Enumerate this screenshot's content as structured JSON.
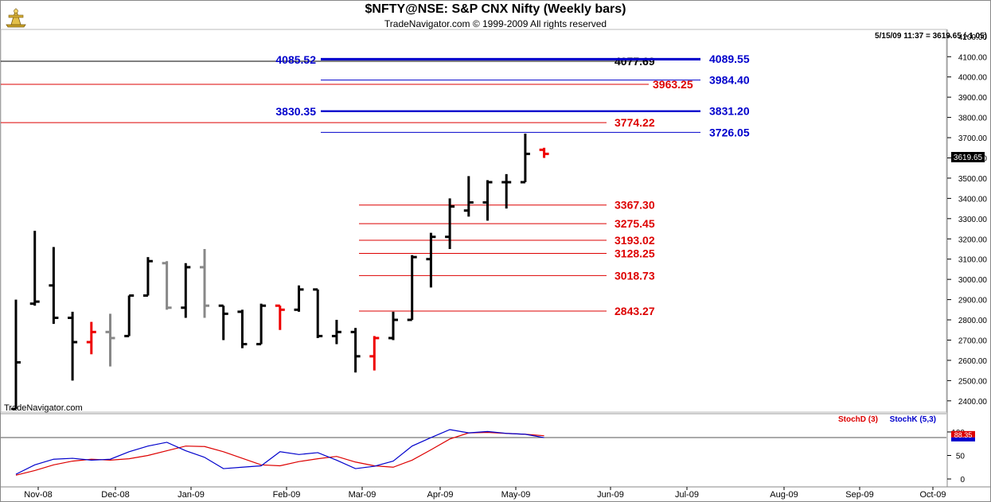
{
  "header": {
    "title": "$NFTY@NSE:  S&P CNX Nifty  (Weekly bars)",
    "subtitle": "TradeNavigator.com © 1999-2009 All rights reserved",
    "quote": "5/15/09 11:37 = 3619.65 (-1.05)",
    "last_price_tag": "3619.65",
    "watermark": "TradeNavigator.com"
  },
  "chart_data": [
    {
      "type": "bar",
      "subtype": "ohlc",
      "title": "$NFTY@NSE:  S&P CNX Nifty  (Weekly bars)",
      "ylim": [
        2360,
        4215
      ],
      "y_ticks": [
        2400,
        2500,
        2600,
        2700,
        2800,
        2900,
        3000,
        3100,
        3200,
        3300,
        3400,
        3500,
        3600,
        3700,
        3800,
        3900,
        4000,
        4100,
        4200
      ],
      "y_tick_labels": [
        "2400.00",
        "2500.00",
        "2600.00",
        "2700.00",
        "2800.00",
        "2900.00",
        "3000.00",
        "3100.00",
        "3200.00",
        "3300.00",
        "3400.00",
        "3500.00",
        "3600.00",
        "3700.00",
        "3800.00",
        "3900.00",
        "4000.00",
        "4100.00",
        "4200.00"
      ],
      "x_tick_labels": [
        "Nov-08",
        "Dec-08",
        "Jan-09",
        "Feb-09",
        "Mar-09",
        "Apr-09",
        "May-09",
        "Jun-09",
        "Jul-09",
        "Aug-09",
        "Sep-09",
        "Oct-09"
      ],
      "bar_colors": {
        "black": "#000000",
        "red": "#ee0000",
        "gray": "#888888"
      },
      "bars": [
        {
          "o": 2360,
          "h": 2900,
          "l": 2360,
          "c": 2590,
          "color": "black"
        },
        {
          "o": 2880,
          "h": 3240,
          "l": 2870,
          "c": 2890,
          "color": "black"
        },
        {
          "o": 2970,
          "h": 3160,
          "l": 2780,
          "c": 2810,
          "color": "black"
        },
        {
          "o": 2810,
          "h": 2840,
          "l": 2500,
          "c": 2690,
          "color": "black"
        },
        {
          "o": 2690,
          "h": 2790,
          "l": 2630,
          "c": 2740,
          "color": "red"
        },
        {
          "o": 2740,
          "h": 2830,
          "l": 2570,
          "c": 2710,
          "color": "gray"
        },
        {
          "o": 2720,
          "h": 2920,
          "l": 2720,
          "c": 2920,
          "color": "black"
        },
        {
          "o": 2920,
          "h": 3110,
          "l": 2920,
          "c": 3090,
          "color": "black"
        },
        {
          "o": 3080,
          "h": 3090,
          "l": 2850,
          "c": 2860,
          "color": "gray"
        },
        {
          "o": 2860,
          "h": 3080,
          "l": 2810,
          "c": 3060,
          "color": "black"
        },
        {
          "o": 3060,
          "h": 3150,
          "l": 2810,
          "c": 2870,
          "color": "gray"
        },
        {
          "o": 2870,
          "h": 2870,
          "l": 2700,
          "c": 2830,
          "color": "black"
        },
        {
          "o": 2840,
          "h": 2850,
          "l": 2660,
          "c": 2680,
          "color": "black"
        },
        {
          "o": 2680,
          "h": 2880,
          "l": 2680,
          "c": 2870,
          "color": "black"
        },
        {
          "o": 2870,
          "h": 2870,
          "l": 2750,
          "c": 2850,
          "color": "red"
        },
        {
          "o": 2850,
          "h": 2970,
          "l": 2840,
          "c": 2950,
          "color": "black"
        },
        {
          "o": 2950,
          "h": 2950,
          "l": 2710,
          "c": 2720,
          "color": "black"
        },
        {
          "o": 2720,
          "h": 2800,
          "l": 2680,
          "c": 2740,
          "color": "black"
        },
        {
          "o": 2740,
          "h": 2760,
          "l": 2540,
          "c": 2620,
          "color": "black"
        },
        {
          "o": 2620,
          "h": 2720,
          "l": 2550,
          "c": 2710,
          "color": "red"
        },
        {
          "o": 2710,
          "h": 2840,
          "l": 2700,
          "c": 2800,
          "color": "black"
        },
        {
          "o": 2800,
          "h": 3120,
          "l": 2800,
          "c": 3110,
          "color": "black"
        },
        {
          "o": 3100,
          "h": 3230,
          "l": 2960,
          "c": 3210,
          "color": "black"
        },
        {
          "o": 3210,
          "h": 3400,
          "l": 3150,
          "c": 3360,
          "color": "black"
        },
        {
          "o": 3340,
          "h": 3510,
          "l": 3310,
          "c": 3380,
          "color": "black"
        },
        {
          "o": 3380,
          "h": 3490,
          "l": 3290,
          "c": 3480,
          "color": "black"
        },
        {
          "o": 3480,
          "h": 3520,
          "l": 3350,
          "c": 3480,
          "color": "black"
        },
        {
          "o": 3480,
          "h": 3720,
          "l": 3480,
          "c": 3620,
          "color": "black"
        },
        {
          "o": 3640,
          "h": 3650,
          "l": 3600,
          "c": 3620,
          "color": "red"
        }
      ],
      "annotation_lines": [
        {
          "price": 4077.69,
          "label": "4077.69",
          "color": "#000000",
          "start": "chart-left",
          "end": "label-right"
        },
        {
          "price": 3963.25,
          "label": "3963.25",
          "color": "#dd0000",
          "start": "chart-left",
          "end": "label-right"
        },
        {
          "price": 3774.22,
          "label": "3774.22",
          "color": "#dd0000",
          "start": "chart-left",
          "end": "label-right"
        },
        {
          "price": 4085.52,
          "label": "4085.52",
          "color": "#0000cc",
          "start": "left-label",
          "end": "right-label"
        },
        {
          "price": 4089.55,
          "label": "4089.55",
          "color": "#0000cc",
          "start": "mid",
          "end": "right-label"
        },
        {
          "price": 3984.4,
          "label": "3984.40",
          "color": "#0000cc",
          "start": "mid",
          "end": "right-label"
        },
        {
          "price": 3830.35,
          "label": "3830.35",
          "color": "#0000cc",
          "start": "left-label",
          "end": "right-label"
        },
        {
          "price": 3831.2,
          "label": "3831.20",
          "color": "#0000cc",
          "start": "mid",
          "end": "right-label"
        },
        {
          "price": 3726.05,
          "label": "3726.05",
          "color": "#0000cc",
          "start": "mid",
          "end": "right-label"
        },
        {
          "price": 3367.3,
          "label": "3367.30",
          "color": "#dd0000",
          "start": "fib",
          "end": "fib"
        },
        {
          "price": 3275.45,
          "label": "3275.45",
          "color": "#dd0000",
          "start": "fib",
          "end": "fib"
        },
        {
          "price": 3193.02,
          "label": "3193.02",
          "color": "#dd0000",
          "start": "fib",
          "end": "fib"
        },
        {
          "price": 3128.25,
          "label": "3128.25",
          "color": "#dd0000",
          "start": "fib",
          "end": "fib"
        },
        {
          "price": 3018.73,
          "label": "3018.73",
          "color": "#dd0000",
          "start": "fib",
          "end": "fib"
        },
        {
          "price": 2843.27,
          "label": "2843.27",
          "color": "#dd0000",
          "start": "fib",
          "end": "fib"
        }
      ]
    },
    {
      "type": "line",
      "ylim": [
        -5,
        105
      ],
      "y_ticks": [
        0,
        50,
        100
      ],
      "y_tick_labels": [
        "0",
        "50",
        "100"
      ],
      "last_value_label": "88.35",
      "series": [
        {
          "name": "StochD (3)",
          "color": "#dd0000",
          "values": [
            8,
            18,
            30,
            38,
            42,
            40,
            43,
            50,
            60,
            70,
            69,
            58,
            44,
            30,
            28,
            37,
            43,
            48,
            36,
            28,
            25,
            40,
            62,
            85,
            98,
            99,
            97,
            95,
            92
          ]
        },
        {
          "name": "StochK (5,3)",
          "color": "#0000cc",
          "values": [
            10,
            30,
            42,
            44,
            40,
            42,
            58,
            70,
            78,
            60,
            46,
            22,
            25,
            28,
            58,
            52,
            56,
            40,
            22,
            27,
            38,
            70,
            88,
            105,
            98,
            101,
            97,
            95,
            88
          ]
        }
      ]
    }
  ]
}
